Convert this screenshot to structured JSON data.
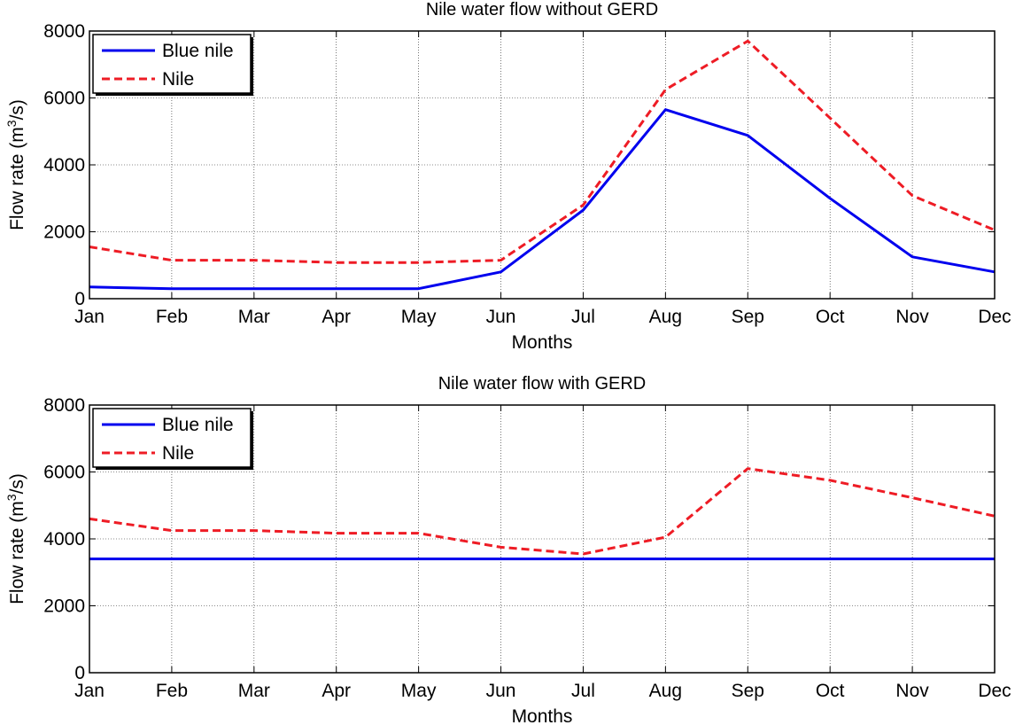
{
  "chart_data": [
    {
      "type": "line",
      "title": "Nile water flow without GERD",
      "xlabel": "Months",
      "ylabel_main": "Flow rate (m",
      "ylabel_sup": "3",
      "ylabel_tail": "/s)",
      "categories": [
        "Jan",
        "Feb",
        "Mar",
        "Apr",
        "May",
        "Jun",
        "Jul",
        "Aug",
        "Sep",
        "Oct",
        "Nov",
        "Dec"
      ],
      "ylim": [
        0,
        8000
      ],
      "yticks": [
        0,
        2000,
        4000,
        6000,
        8000
      ],
      "grid": true,
      "legend": "top-left",
      "series": [
        {
          "name": "Blue nile",
          "color": "#0000ee",
          "style": "solid",
          "values": [
            350,
            300,
            300,
            300,
            300,
            800,
            2650,
            5650,
            4880,
            3000,
            1250,
            800
          ]
        },
        {
          "name": "Nile",
          "color": "#ee1c25",
          "style": "dashed",
          "values": [
            1550,
            1150,
            1150,
            1080,
            1080,
            1150,
            2800,
            6250,
            7700,
            5400,
            3080,
            2050
          ]
        }
      ]
    },
    {
      "type": "line",
      "title": "Nile water flow with GERD",
      "xlabel": "Months",
      "ylabel_main": "Flow rate (m",
      "ylabel_sup": "3",
      "ylabel_tail": "/s)",
      "categories": [
        "Jan",
        "Feb",
        "Mar",
        "Apr",
        "May",
        "Jun",
        "Jul",
        "Aug",
        "Sep",
        "Oct",
        "Nov",
        "Dec"
      ],
      "ylim": [
        0,
        8000
      ],
      "yticks": [
        0,
        2000,
        4000,
        6000,
        8000
      ],
      "grid": true,
      "legend": "top-left",
      "series": [
        {
          "name": "Blue nile",
          "color": "#0000ee",
          "style": "solid",
          "values": [
            3400,
            3400,
            3400,
            3400,
            3400,
            3400,
            3400,
            3400,
            3400,
            3400,
            3400,
            3400
          ]
        },
        {
          "name": "Nile",
          "color": "#ee1c25",
          "style": "dashed",
          "values": [
            4600,
            4250,
            4250,
            4170,
            4170,
            3750,
            3550,
            4050,
            6100,
            5750,
            5230,
            4680
          ]
        }
      ]
    }
  ]
}
